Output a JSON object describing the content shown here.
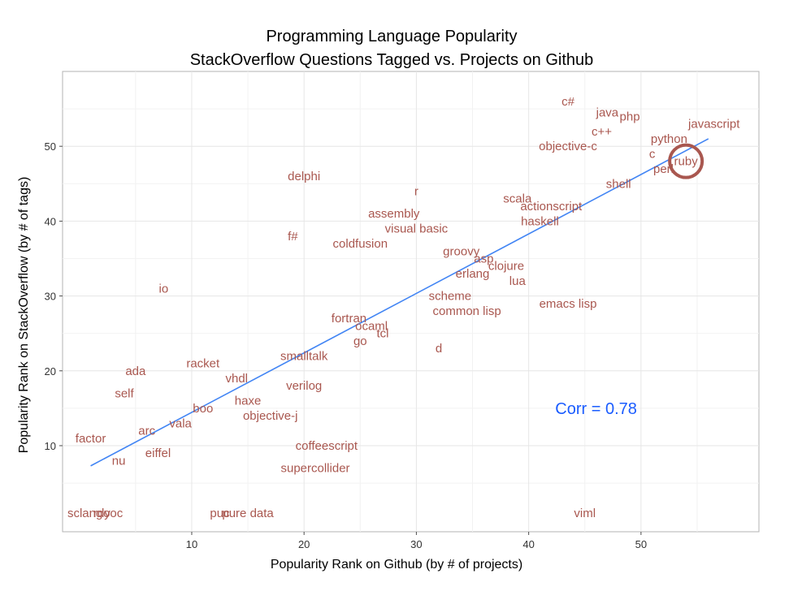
{
  "chart_data": {
    "type": "scatter",
    "title": "Programming Language Popularity",
    "subtitle": "StackOverflow Questions Tagged vs. Projects on Github",
    "xlabel": "Popularity Rank on Github (by # of projects)",
    "ylabel": "Popularity Rank on StackOverflow (by # of tags)",
    "xlim": [
      -1.5,
      60.5
    ],
    "ylim": [
      -1.5,
      60
    ],
    "x_ticks": [
      10,
      20,
      30,
      40,
      50
    ],
    "y_ticks": [
      10,
      20,
      30,
      40,
      50
    ],
    "grid": true,
    "label_color": "#a9574f",
    "fit_line": {
      "x": [
        1,
        56
      ],
      "y": [
        7.3,
        51
      ],
      "color": "#4285f4"
    },
    "highlight": {
      "label": "ruby",
      "x": 54,
      "y": 48,
      "color": "#a9574f"
    },
    "annotation": {
      "text": "Corr =  0.78",
      "x": 46,
      "y": 15,
      "color": "#1a5cff"
    },
    "points": [
      {
        "label": "c#",
        "x": 43.5,
        "y": 56
      },
      {
        "label": "java",
        "x": 47,
        "y": 54.5
      },
      {
        "label": "php",
        "x": 49,
        "y": 54
      },
      {
        "label": "javascript",
        "x": 56.5,
        "y": 53
      },
      {
        "label": "c++",
        "x": 46.5,
        "y": 52
      },
      {
        "label": "python",
        "x": 52.5,
        "y": 51
      },
      {
        "label": "objective-c",
        "x": 43.5,
        "y": 50
      },
      {
        "label": "c",
        "x": 51,
        "y": 49
      },
      {
        "label": "ruby",
        "x": 54,
        "y": 48
      },
      {
        "label": "perl",
        "x": 52,
        "y": 47
      },
      {
        "label": "shell",
        "x": 48,
        "y": 45
      },
      {
        "label": "delphi",
        "x": 20,
        "y": 46
      },
      {
        "label": "r",
        "x": 30,
        "y": 44
      },
      {
        "label": "scala",
        "x": 39,
        "y": 43
      },
      {
        "label": "actionscript",
        "x": 42,
        "y": 42
      },
      {
        "label": "assembly",
        "x": 28,
        "y": 41
      },
      {
        "label": "haskell",
        "x": 41,
        "y": 40
      },
      {
        "label": "visual basic",
        "x": 30,
        "y": 39
      },
      {
        "label": "f#",
        "x": 19,
        "y": 38
      },
      {
        "label": "coldfusion",
        "x": 25,
        "y": 37
      },
      {
        "label": "groovy",
        "x": 34,
        "y": 36
      },
      {
        "label": "asp",
        "x": 36,
        "y": 35
      },
      {
        "label": "clojure",
        "x": 38,
        "y": 34
      },
      {
        "label": "erlang",
        "x": 35,
        "y": 33
      },
      {
        "label": "lua",
        "x": 39,
        "y": 32
      },
      {
        "label": "io",
        "x": 7.5,
        "y": 31
      },
      {
        "label": "scheme",
        "x": 33,
        "y": 30
      },
      {
        "label": "emacs lisp",
        "x": 43.5,
        "y": 29
      },
      {
        "label": "common lisp",
        "x": 34.5,
        "y": 28
      },
      {
        "label": "fortran",
        "x": 24,
        "y": 27
      },
      {
        "label": "ocaml",
        "x": 26,
        "y": 26
      },
      {
        "label": "tcl",
        "x": 27,
        "y": 25
      },
      {
        "label": "go",
        "x": 25,
        "y": 24
      },
      {
        "label": "d",
        "x": 32,
        "y": 23
      },
      {
        "label": "smalltalk",
        "x": 20,
        "y": 22
      },
      {
        "label": "racket",
        "x": 11,
        "y": 21
      },
      {
        "label": "ada",
        "x": 5,
        "y": 20
      },
      {
        "label": "vhdl",
        "x": 14,
        "y": 19
      },
      {
        "label": "verilog",
        "x": 20,
        "y": 18
      },
      {
        "label": "self",
        "x": 4,
        "y": 17
      },
      {
        "label": "haxe",
        "x": 15,
        "y": 16
      },
      {
        "label": "boo",
        "x": 11,
        "y": 15
      },
      {
        "label": "objective-j",
        "x": 17,
        "y": 14
      },
      {
        "label": "vala",
        "x": 9,
        "y": 13
      },
      {
        "label": "arc",
        "x": 6,
        "y": 12
      },
      {
        "label": "factor",
        "x": 1,
        "y": 11
      },
      {
        "label": "coffeescript",
        "x": 22,
        "y": 10
      },
      {
        "label": "eiffel",
        "x": 7,
        "y": 9
      },
      {
        "label": "nu",
        "x": 3.5,
        "y": 8
      },
      {
        "label": "supercollider",
        "x": 21,
        "y": 7
      },
      {
        "label": "sclang",
        "x": 0.5,
        "y": 1
      },
      {
        "label": "ooc",
        "x": 3,
        "y": 1
      },
      {
        "label": "rdy",
        "x": 2,
        "y": 1
      },
      {
        "label": "pure data",
        "x": 15,
        "y": 1
      },
      {
        "label": "puc",
        "x": 12.5,
        "y": 1
      },
      {
        "label": "viml",
        "x": 45,
        "y": 1
      }
    ]
  }
}
